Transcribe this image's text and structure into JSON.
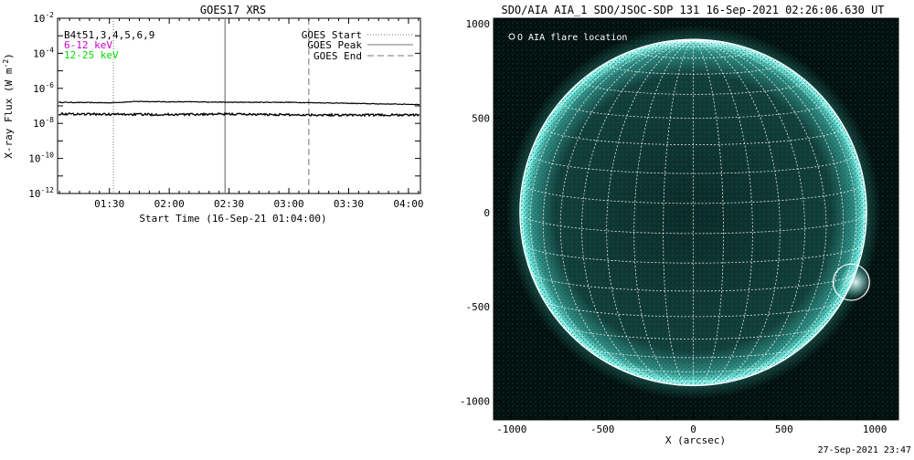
{
  "chart_data": [
    {
      "type": "line",
      "title": "GOES17 XRS",
      "xlabel": "Start Time (16-Sep-21 01:04:00)",
      "ylabel": "X-ray Flux (W m^-2)",
      "y_scale": "log",
      "ylim": [
        1e-12,
        0.01
      ],
      "xlim": [
        "01:04",
        "04:06"
      ],
      "x_ticks": [
        "01:30",
        "02:00",
        "02:30",
        "03:00",
        "03:30",
        "04:00"
      ],
      "y_ticks": [
        "10^-2",
        "10^-4",
        "10^-6",
        "10^-8",
        "10^-10",
        "10^-12"
      ],
      "channels_label": "B4t51,3,4,5,6,9",
      "series": [
        {
          "name": "6-12 keV",
          "color": "#cc00cc",
          "x": [
            "01:04",
            "01:30",
            "01:45",
            "02:00",
            "02:15",
            "02:30",
            "02:45",
            "03:00",
            "03:15",
            "03:30",
            "03:45",
            "04:06"
          ],
          "values": [
            1.6e-07,
            1.5e-07,
            1.8e-07,
            1.7e-07,
            1.7e-07,
            1.6e-07,
            1.6e-07,
            1.6e-07,
            1.5e-07,
            1.4e-07,
            1.3e-07,
            1.2e-07
          ]
        },
        {
          "name": "12-25 keV",
          "color": "#00dd00",
          "x": [
            "01:04",
            "01:30",
            "02:00",
            "02:30",
            "03:00",
            "03:30",
            "04:06"
          ],
          "values": [
            3.5e-08,
            3.3e-08,
            3.2e-08,
            3.4e-08,
            3.1e-08,
            3e-08,
            3e-08
          ]
        }
      ],
      "markers": [
        {
          "name": "GOES Start",
          "x": "01:32",
          "style": "dotted"
        },
        {
          "name": "GOES Peak",
          "x": "02:28",
          "style": "solid"
        },
        {
          "name": "GOES End",
          "x": "03:10",
          "style": "dashed"
        }
      ]
    },
    {
      "type": "scatter",
      "title": "SDO/AIA AIA_1 SDO/JSOC-SDP 131 16-Sep-2021 02:26:06.630 UT",
      "xlabel": "X (arcsec)",
      "ylabel": "",
      "xlim": [
        -1100,
        1130
      ],
      "ylim": [
        -1100,
        1030
      ],
      "x_ticks": [
        "-1000",
        "-500",
        "0",
        "500",
        "1000"
      ],
      "y_ticks": [
        "1000",
        "500",
        "0",
        "-500",
        "-1000"
      ],
      "legend": "O AIA flare location",
      "solar_radius_arcsec": 955,
      "flare_location": {
        "x": 870,
        "y": -370,
        "radius": 100
      },
      "grid_spacing_deg": 10
    }
  ],
  "timestamp": "27-Sep-2021 23:47"
}
